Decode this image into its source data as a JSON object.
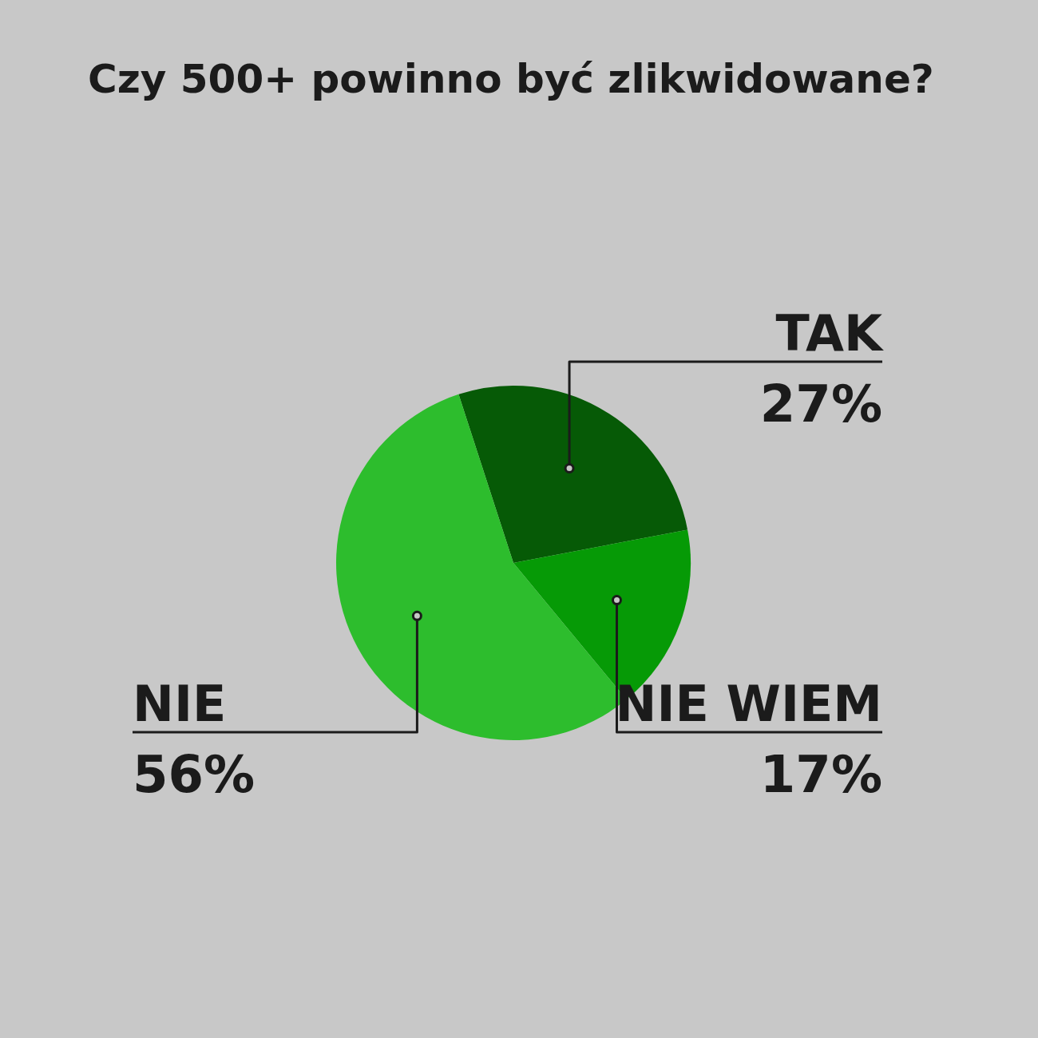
{
  "chart_data": {
    "type": "pie",
    "title": "Czy 500+ powinno być zlikwidowane?",
    "categories": [
      "TAK",
      "NIE WIEM",
      "NIE"
    ],
    "values": [
      27,
      17,
      56
    ],
    "colors": [
      "#065a06",
      "#069a06",
      "#2dbd2d"
    ],
    "value_labels": [
      "27%",
      "17%",
      "56%"
    ],
    "legend": false
  }
}
